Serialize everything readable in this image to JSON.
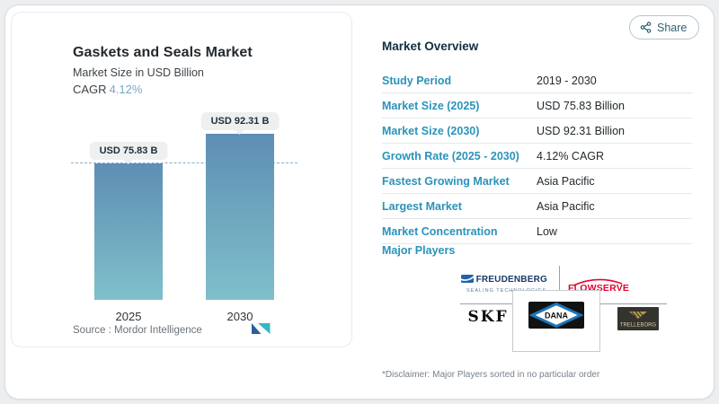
{
  "share": {
    "label": "Share",
    "icon": "share-nodes"
  },
  "chart_card": {
    "title": "Gaskets and Seals Market",
    "subtitle": "Market Size in USD Billion",
    "cagr_label": "CAGR",
    "cagr_value": "4.12%",
    "source": "Source :  Mordor Intelligence",
    "bars": [
      {
        "year": "2025",
        "label": "USD 75.83 B"
      },
      {
        "year": "2030",
        "label": "USD 92.31 B"
      }
    ]
  },
  "chart_data": {
    "type": "bar",
    "categories": [
      "2025",
      "2030"
    ],
    "values": [
      75.83,
      92.31
    ],
    "bar_labels": [
      "USD 75.83 B",
      "USD 92.31 B"
    ],
    "title": "Gaskets and Seals Market",
    "subtitle": "Market Size in USD Billion",
    "unit": "USD Billion",
    "cagr": "4.12%",
    "reference_line": 75.83,
    "ylim": [
      0,
      93
    ],
    "grid": false,
    "legend": "none",
    "bar_color_top": "#5e8eb4",
    "bar_color_bottom": "#7fc0ca"
  },
  "overview": {
    "title": "Market Overview",
    "rows": [
      {
        "label": "Study Period",
        "value": "2019 - 2030"
      },
      {
        "label": "Market Size (2025)",
        "value": "USD 75.83 Billion"
      },
      {
        "label": "Market Size (2030)",
        "value": "USD 92.31 Billion"
      },
      {
        "label": "Growth Rate (2025 - 2030)",
        "value": "4.12% CAGR"
      },
      {
        "label": "Fastest Growing Market",
        "value": "Asia Pacific"
      },
      {
        "label": "Largest Market",
        "value": "Asia Pacific"
      },
      {
        "label": "Market Concentration",
        "value": "Low"
      }
    ],
    "major_players_label": "Major Players",
    "players": {
      "freudenberg": {
        "name": "FREUDENBERG",
        "sub": "SEALING TECHNOLOGIES"
      },
      "flowserve": {
        "name": "FLOWSERVE"
      },
      "skf": {
        "name": "SKF"
      },
      "dana": {
        "name": "DANA"
      },
      "trelleborg": {
        "name": "TRELLEBORG"
      }
    },
    "disclaimer": "*Disclaimer: Major Players sorted in no particular order"
  },
  "colors": {
    "accent_label_blue": "#2a93ba",
    "heading_navy": "#0f2f40",
    "cagr_blue": "#7aa6c6",
    "flowserve_red": "#e4032e",
    "freudenberg_navy": "#173a68",
    "share_teal": "#2d6374"
  }
}
